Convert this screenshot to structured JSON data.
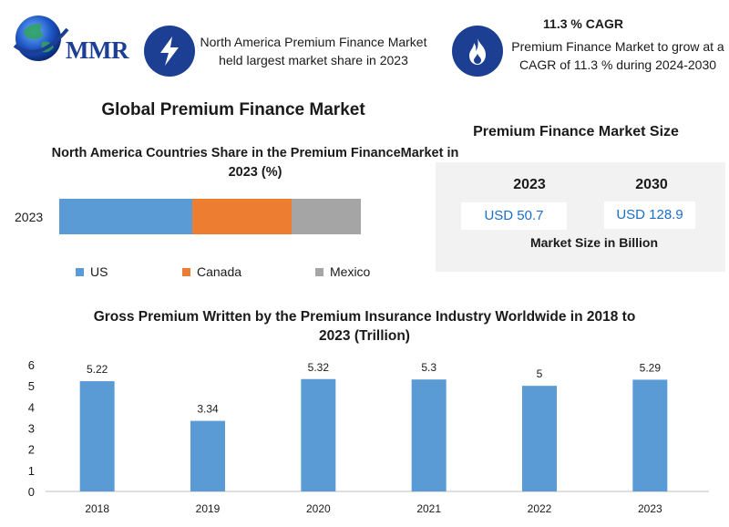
{
  "header": {
    "logo_text": "MMR",
    "logo_icon": "globe-icon",
    "fact1_icon": "lightning-icon",
    "fact1_text": "North America Premium Finance Market held largest market share in 2023",
    "fact2_icon": "flame-icon",
    "fact2_title": "11.3 % CAGR",
    "fact2_text": "Premium Finance Market to grow at a CAGR of 11.3 % during 2024-2030"
  },
  "main_title": "Global Premium Finance Market",
  "market_size": {
    "title": "Premium Finance Market Size",
    "year_a": "2023",
    "value_a": "USD 50.7",
    "year_b": "2030",
    "value_b": "USD 128.9",
    "caption": "Market Size in Billion"
  },
  "chart_data": [
    {
      "type": "bar",
      "stacked": true,
      "orientation": "horizontal",
      "title": "North America Countries Share in the Premium FinanceMarket in 2023 (%)",
      "categories": [
        "2023"
      ],
      "series": [
        {
          "name": "US",
          "values": [
            44
          ],
          "color": "#5b9bd5"
        },
        {
          "name": "Canada",
          "values": [
            33
          ],
          "color": "#ed7d31"
        },
        {
          "name": "Mexico",
          "values": [
            23
          ],
          "color": "#a5a5a5"
        }
      ],
      "legend": "bottom"
    },
    {
      "type": "bar",
      "title": "Gross Premium Written by the Premium Insurance Industry Worldwide in 2018 to 2023 (Trillion)",
      "categories": [
        "2018",
        "2019",
        "2020",
        "2021",
        "2022",
        "2023"
      ],
      "values": [
        5.22,
        3.34,
        5.32,
        5.3,
        5,
        5.29
      ],
      "data_labels": [
        "5.22",
        "3.34",
        "5.32",
        "5.3",
        "5",
        "5.29"
      ],
      "ylim": [
        0,
        6
      ],
      "yticks": [
        "0",
        "1",
        "2",
        "3",
        "4",
        "5",
        "6"
      ],
      "color": "#5b9bd5",
      "grid": false
    }
  ]
}
